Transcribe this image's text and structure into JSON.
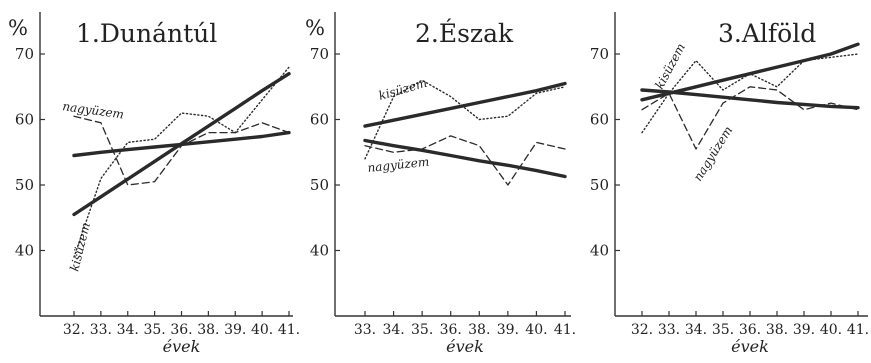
{
  "chart_data": [
    {
      "type": "line",
      "title": "1.Dunántúl",
      "ylabel": "%",
      "xlabel": "évek",
      "ylim": [
        30,
        75
      ],
      "yticks": [
        40,
        50,
        60,
        70
      ],
      "categories": [
        "32.",
        "33.",
        "34.",
        "35.",
        "36.",
        "38.",
        "39.",
        "40.",
        "41."
      ],
      "grid": false,
      "series": [
        {
          "name": "nagyüzem",
          "style": "dashed",
          "values": [
            60.5,
            59.5,
            50,
            50.5,
            56,
            58,
            58,
            59.5,
            58
          ]
        },
        {
          "name": "kisüzem",
          "style": "dotted",
          "values": [
            39,
            51,
            56.5,
            57,
            61,
            60.5,
            58,
            63,
            68
          ]
        },
        {
          "name": "",
          "style": "trend",
          "values": [
            54.5,
            55,
            55.4,
            55.8,
            56.2,
            56.6,
            57,
            57.4,
            58
          ]
        },
        {
          "name": "",
          "style": "trend",
          "values": [
            45.5,
            48.2,
            50.9,
            53.6,
            56.3,
            59,
            61.7,
            64.4,
            67
          ]
        }
      ]
    },
    {
      "type": "line",
      "title": "2.Észak",
      "ylabel": "%",
      "xlabel": "évek",
      "ylim": [
        30,
        75
      ],
      "yticks": [
        40,
        50,
        60,
        70
      ],
      "categories": [
        "33.",
        "34.",
        "35.",
        "36.",
        "38.",
        "39.",
        "40.",
        "41."
      ],
      "grid": false,
      "series": [
        {
          "name": "kisüzem",
          "style": "dotted",
          "values": [
            54,
            63.5,
            66,
            63.5,
            60,
            60.5,
            64,
            65
          ]
        },
        {
          "name": "nagyüzem",
          "style": "dashed",
          "values": [
            56,
            55,
            55.5,
            57.5,
            56,
            50,
            56.5,
            55.5
          ]
        },
        {
          "name": "",
          "style": "trend",
          "values": [
            59,
            59.9,
            60.8,
            61.7,
            62.6,
            63.5,
            64.4,
            65.5
          ]
        },
        {
          "name": "",
          "style": "trend",
          "values": [
            56.8,
            56,
            55.3,
            54.5,
            53.7,
            53,
            52.2,
            51.3
          ]
        }
      ]
    },
    {
      "type": "line",
      "title": "3.Alföld",
      "xlabel": "évek",
      "ylim": [
        30,
        75
      ],
      "yticks": [
        40,
        50,
        60,
        70
      ],
      "categories": [
        "32.",
        "33.",
        "34.",
        "35.",
        "36.",
        "38.",
        "39.",
        "40.",
        "41."
      ],
      "grid": false,
      "series": [
        {
          "name": "kisüzem",
          "style": "dotted",
          "values": [
            58,
            64,
            69,
            64.5,
            67,
            65,
            69,
            69.5,
            70
          ]
        },
        {
          "name": "nagyüzem",
          "style": "dashed",
          "values": [
            61.5,
            64,
            55.5,
            62.5,
            65,
            64.5,
            61.5,
            62.5,
            61.5
          ]
        },
        {
          "name": "",
          "style": "trend",
          "values": [
            63,
            64,
            65,
            66,
            67,
            68,
            69,
            70,
            71.5
          ]
        },
        {
          "name": "",
          "style": "trend",
          "values": [
            64.5,
            64.2,
            63.8,
            63.4,
            63,
            62.6,
            62.3,
            62,
            61.8
          ]
        }
      ]
    }
  ]
}
